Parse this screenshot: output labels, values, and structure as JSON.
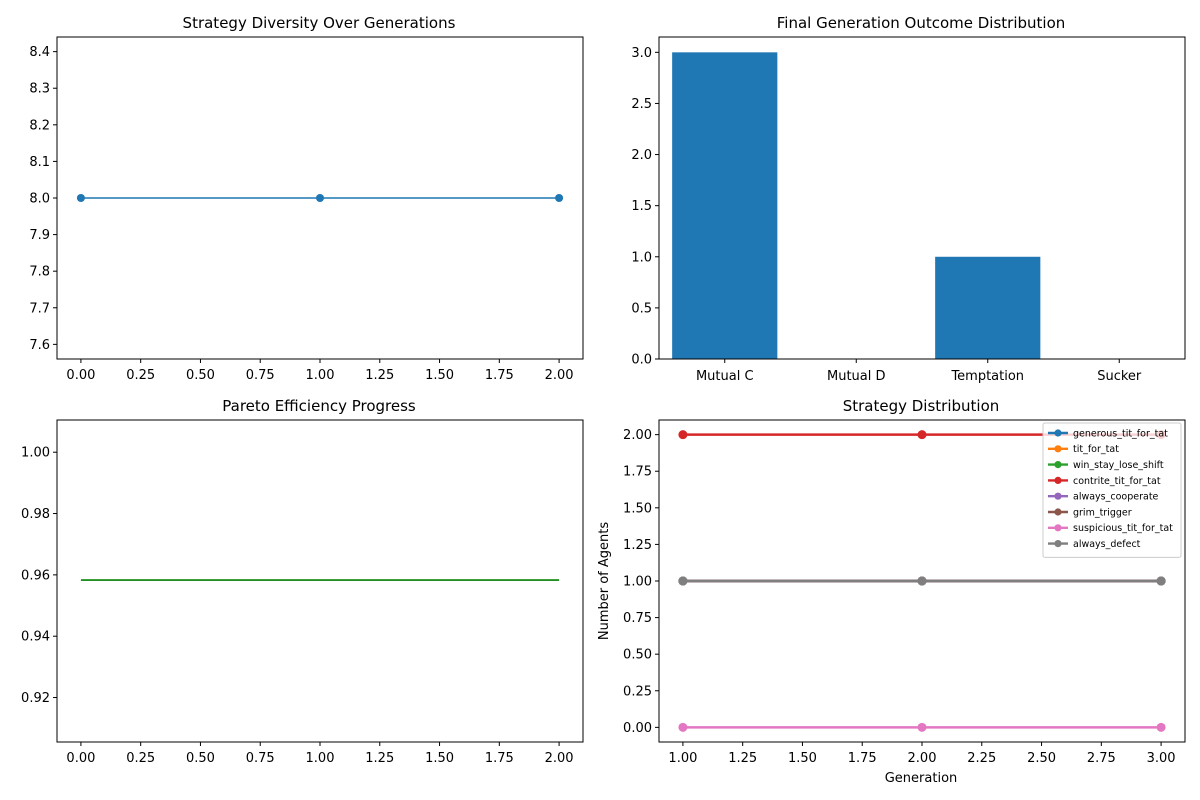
{
  "chart_data": [
    {
      "type": "line",
      "title": "Strategy Diversity Over Generations",
      "xlabel": "",
      "ylabel": "",
      "xlim": [
        -0.1,
        2.1
      ],
      "ylim": [
        7.56,
        8.44
      ],
      "xticks": [
        0.0,
        0.25,
        0.5,
        0.75,
        1.0,
        1.25,
        1.5,
        1.75,
        2.0
      ],
      "xtick_labels": [
        "0.00",
        "0.25",
        "0.50",
        "0.75",
        "1.00",
        "1.25",
        "1.50",
        "1.75",
        "2.00"
      ],
      "yticks": [
        7.6,
        7.7,
        7.8,
        7.9,
        8.0,
        8.1,
        8.2,
        8.3,
        8.4
      ],
      "ytick_labels": [
        "7.6",
        "7.7",
        "7.8",
        "7.9",
        "8.0",
        "8.1",
        "8.2",
        "8.3",
        "8.4"
      ],
      "grid": false,
      "series": [
        {
          "x": [
            0,
            1,
            2
          ],
          "values": [
            8,
            8,
            8
          ],
          "color": "#1f77b4",
          "markers": true
        }
      ]
    },
    {
      "type": "bar",
      "title": "Final Generation Outcome Distribution",
      "xlabel": "",
      "ylabel": "",
      "categories": [
        "Mutual C",
        "Mutual D",
        "Temptation",
        "Sucker"
      ],
      "values": [
        3,
        0,
        1,
        0
      ],
      "ylim": [
        0,
        3.15
      ],
      "yticks": [
        0.0,
        0.5,
        1.0,
        1.5,
        2.0,
        2.5,
        3.0
      ],
      "ytick_labels": [
        "0.0",
        "0.5",
        "1.0",
        "1.5",
        "2.0",
        "2.5",
        "3.0"
      ],
      "color": "#1f77b4",
      "grid": false
    },
    {
      "type": "line",
      "title": "Pareto Efficiency Progress",
      "xlabel": "",
      "ylabel": "",
      "xlim": [
        -0.1,
        2.1
      ],
      "ylim": [
        0.9055,
        1.0105
      ],
      "xticks": [
        0.0,
        0.25,
        0.5,
        0.75,
        1.0,
        1.25,
        1.5,
        1.75,
        2.0
      ],
      "xtick_labels": [
        "0.00",
        "0.25",
        "0.50",
        "0.75",
        "1.00",
        "1.25",
        "1.50",
        "1.75",
        "2.00"
      ],
      "yticks": [
        0.92,
        0.94,
        0.96,
        0.98,
        1.0
      ],
      "ytick_labels": [
        "0.92",
        "0.94",
        "0.96",
        "0.98",
        "1.00"
      ],
      "grid": false,
      "series": [
        {
          "x": [
            0,
            1,
            2
          ],
          "values": [
            0.9583,
            0.9583,
            0.9583
          ],
          "color": "#008000",
          "markers": false
        }
      ]
    },
    {
      "type": "line",
      "title": "Strategy Distribution",
      "xlabel": "Generation",
      "ylabel": "Number of Agents",
      "xlim": [
        0.9,
        3.1
      ],
      "ylim": [
        -0.1,
        2.1
      ],
      "xticks": [
        1.0,
        1.25,
        1.5,
        1.75,
        2.0,
        2.25,
        2.5,
        2.75,
        3.0
      ],
      "xtick_labels": [
        "1.00",
        "1.25",
        "1.50",
        "1.75",
        "2.00",
        "2.25",
        "2.50",
        "2.75",
        "3.00"
      ],
      "yticks": [
        0.0,
        0.25,
        0.5,
        0.75,
        1.0,
        1.25,
        1.5,
        1.75,
        2.0
      ],
      "ytick_labels": [
        "0.00",
        "0.25",
        "0.50",
        "0.75",
        "1.00",
        "1.25",
        "1.50",
        "1.75",
        "2.00"
      ],
      "grid": false,
      "legend_position": "top-right",
      "series": [
        {
          "name": "generous_tit_for_tat",
          "x": [
            1,
            2,
            3
          ],
          "values": [
            1,
            1,
            1
          ],
          "color": "#1f77b4"
        },
        {
          "name": "tit_for_tat",
          "x": [
            1,
            2,
            3
          ],
          "values": [
            1,
            1,
            1
          ],
          "color": "#ff7f0e"
        },
        {
          "name": "win_stay_lose_shift",
          "x": [
            1,
            2,
            3
          ],
          "values": [
            1,
            1,
            1
          ],
          "color": "#2ca02c"
        },
        {
          "name": "contrite_tit_for_tat",
          "x": [
            1,
            2,
            3
          ],
          "values": [
            2,
            2,
            2
          ],
          "color": "#d62728"
        },
        {
          "name": "always_cooperate",
          "x": [
            1,
            2,
            3
          ],
          "values": [
            1,
            1,
            1
          ],
          "color": "#9467bd"
        },
        {
          "name": "grim_trigger",
          "x": [
            1,
            2,
            3
          ],
          "values": [
            1,
            1,
            1
          ],
          "color": "#8c564b"
        },
        {
          "name": "suspicious_tit_for_tat",
          "x": [
            1,
            2,
            3
          ],
          "values": [
            0,
            0,
            0
          ],
          "color": "#e377c2"
        },
        {
          "name": "always_defect",
          "x": [
            1,
            2,
            3
          ],
          "values": [
            1,
            1,
            1
          ],
          "color": "#7f7f7f"
        }
      ]
    }
  ]
}
